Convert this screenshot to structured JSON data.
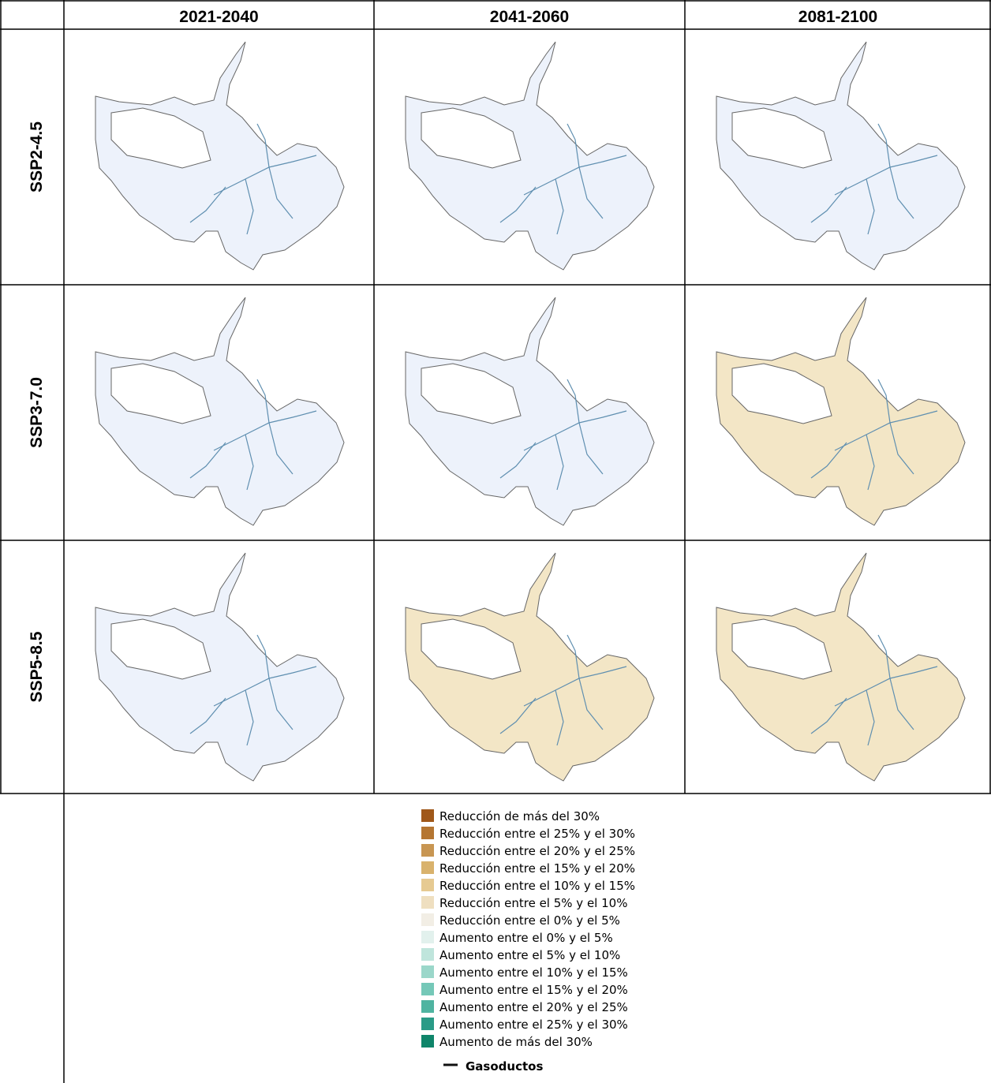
{
  "table": {
    "columns": [
      "2021-2040",
      "2041-2060",
      "2081-2100"
    ],
    "rows": [
      {
        "label": "SSP2-4.5",
        "fills": [
          "#edf2fb",
          "#edf2fb",
          "#edf2fb"
        ]
      },
      {
        "label": "SSP3-7.0",
        "fills": [
          "#edf2fb",
          "#edf2fb",
          "#f3e6c6"
        ]
      },
      {
        "label": "SSP5-8.5",
        "fills": [
          "#edf2fb",
          "#f3e6c6",
          "#f3e6c6"
        ]
      }
    ]
  },
  "legend": {
    "items": [
      {
        "label": "Reducción de más del 30%",
        "color": "#a0581a"
      },
      {
        "label": "Reducción entre el 25% y el 30%",
        "color": "#b57632"
      },
      {
        "label": "Reducción entre el 20% y el 25%",
        "color": "#c89652"
      },
      {
        "label": "Reducción entre el 15% y el 20%",
        "color": "#d9b26c"
      },
      {
        "label": "Reducción entre el 10% y el 15%",
        "color": "#e6ca92"
      },
      {
        "label": "Reducción entre el 5% y el 10%",
        "color": "#efdfc0"
      },
      {
        "label": "Reducción entre el 0% y el 5%",
        "color": "#f2eee5"
      },
      {
        "label": "Aumento entre el 0% y el 5%",
        "color": "#e2f1ed"
      },
      {
        "label": "Aumento entre el 5% y el 10%",
        "color": "#bfe5dc"
      },
      {
        "label": "Aumento entre el 10% y el 15%",
        "color": "#9bd7ca"
      },
      {
        "label": "Aumento entre el 15% y el 20%",
        "color": "#75c8b8"
      },
      {
        "label": "Aumento entre el 20% y el 25%",
        "color": "#4fb4a1"
      },
      {
        "label": "Aumento entre el 25% y el 30%",
        "color": "#2a9b87"
      },
      {
        "label": "Aumento de más del 30%",
        "color": "#0f856a"
      }
    ],
    "line": {
      "label": "Gasoductos",
      "color": "#111111"
    }
  }
}
